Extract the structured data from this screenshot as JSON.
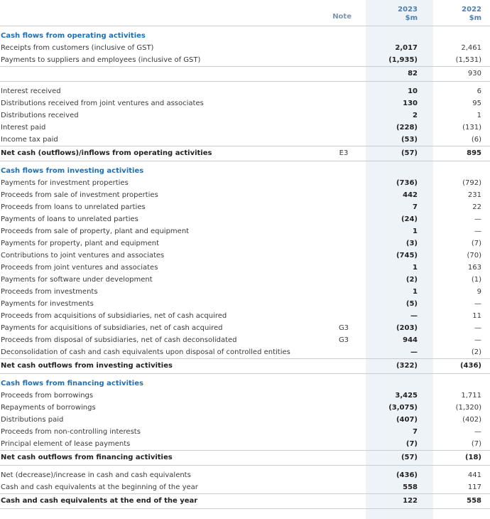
{
  "header": {
    "note": "Note",
    "columns": [
      {
        "year": "2023",
        "unit": "$m"
      },
      {
        "year": "2022",
        "unit": "$m"
      }
    ]
  },
  "blocks": [
    {
      "heading": "Cash flows from operating activities",
      "rows": [
        {
          "label": "Receipts from customers (inclusive of GST)",
          "values": [
            "2,017",
            "2,461"
          ]
        },
        {
          "label": "Payments to suppliers and employees (inclusive of GST)",
          "values": [
            "(1,935)",
            "(1,531)"
          ]
        }
      ],
      "subtotal": {
        "values": [
          "82",
          "930"
        ]
      }
    },
    {
      "rows": [
        {
          "label": "Interest received",
          "values": [
            "10",
            "6"
          ]
        },
        {
          "label": "Distributions received from joint ventures and associates",
          "values": [
            "130",
            "95"
          ]
        },
        {
          "label": "Distributions received",
          "values": [
            "2",
            "1"
          ]
        },
        {
          "label": "Interest paid",
          "values": [
            "(228)",
            "(131)"
          ]
        },
        {
          "label": "Income tax paid",
          "values": [
            "(53)",
            "(6)"
          ]
        }
      ],
      "total": {
        "label": "Net cash (outflows)/inflows from operating activities",
        "note": "E3",
        "values": [
          "(57)",
          "895"
        ]
      }
    },
    {
      "heading": "Cash flows from investing activities",
      "rows": [
        {
          "label": "Payments for investment properties",
          "values": [
            "(736)",
            "(792)"
          ]
        },
        {
          "label": "Proceeds from sale of investment properties",
          "values": [
            "442",
            "231"
          ]
        },
        {
          "label": "Proceeds from loans to unrelated parties",
          "values": [
            "7",
            "22"
          ]
        },
        {
          "label": "Payments of loans to unrelated parties",
          "values": [
            "(24)",
            "—"
          ]
        },
        {
          "label": "Proceeds from sale of property, plant and equipment",
          "values": [
            "1",
            "—"
          ]
        },
        {
          "label": "Payments for property, plant and equipment",
          "values": [
            "(3)",
            "(7)"
          ]
        },
        {
          "label": "Contributions to joint ventures and associates",
          "values": [
            "(745)",
            "(70)"
          ]
        },
        {
          "label": "Proceeds from joint ventures and associates",
          "values": [
            "1",
            "163"
          ]
        },
        {
          "label": "Payments for software under development",
          "values": [
            "(2)",
            "(1)"
          ]
        },
        {
          "label": "Proceeds from investments",
          "values": [
            "1",
            "9"
          ]
        },
        {
          "label": "Payments for investments",
          "values": [
            "(5)",
            "—"
          ]
        },
        {
          "label": "Proceeds from acquisitions of subsidiaries, net of cash acquired",
          "values": [
            "—",
            "11"
          ]
        },
        {
          "label": "Payments for acquisitions of subsidiaries, net of cash acquired",
          "note": "G3",
          "values": [
            "(203)",
            "—"
          ]
        },
        {
          "label": "Proceeds from disposal of subsidiaries, net of cash deconsolidated",
          "note": "G3",
          "values": [
            "944",
            "—"
          ]
        },
        {
          "label": "Deconsolidation of cash and cash equivalents upon disposal of controlled entities",
          "values": [
            "—",
            "(2)"
          ]
        }
      ],
      "total": {
        "label": "Net cash outflows from investing activities",
        "values": [
          "(322)",
          "(436)"
        ]
      }
    },
    {
      "heading": "Cash flows from financing activities",
      "rows": [
        {
          "label": "Proceeds from borrowings",
          "values": [
            "3,425",
            "1,711"
          ]
        },
        {
          "label": "Repayments of borrowings",
          "values": [
            "(3,075)",
            "(1,320)"
          ]
        },
        {
          "label": "Distributions paid",
          "values": [
            "(407)",
            "(402)"
          ]
        },
        {
          "label": "Proceeds from non-controlling interests",
          "values": [
            "7",
            "—"
          ]
        },
        {
          "label": "Principal element of lease payments",
          "values": [
            "(7)",
            "(7)"
          ]
        }
      ],
      "total": {
        "label": "Net cash outflows from financing activities",
        "values": [
          "(57)",
          "(18)"
        ]
      }
    },
    {
      "rows": [
        {
          "label": "Net (decrease)/increase in cash and cash equivalents",
          "values": [
            "(436)",
            "441"
          ]
        },
        {
          "label": "Cash and cash equivalents at the beginning of the year",
          "values": [
            "558",
            "117"
          ]
        }
      ],
      "total": {
        "label": "Cash and cash equivalents at the end of the year",
        "values": [
          "122",
          "558"
        ]
      }
    }
  ]
}
